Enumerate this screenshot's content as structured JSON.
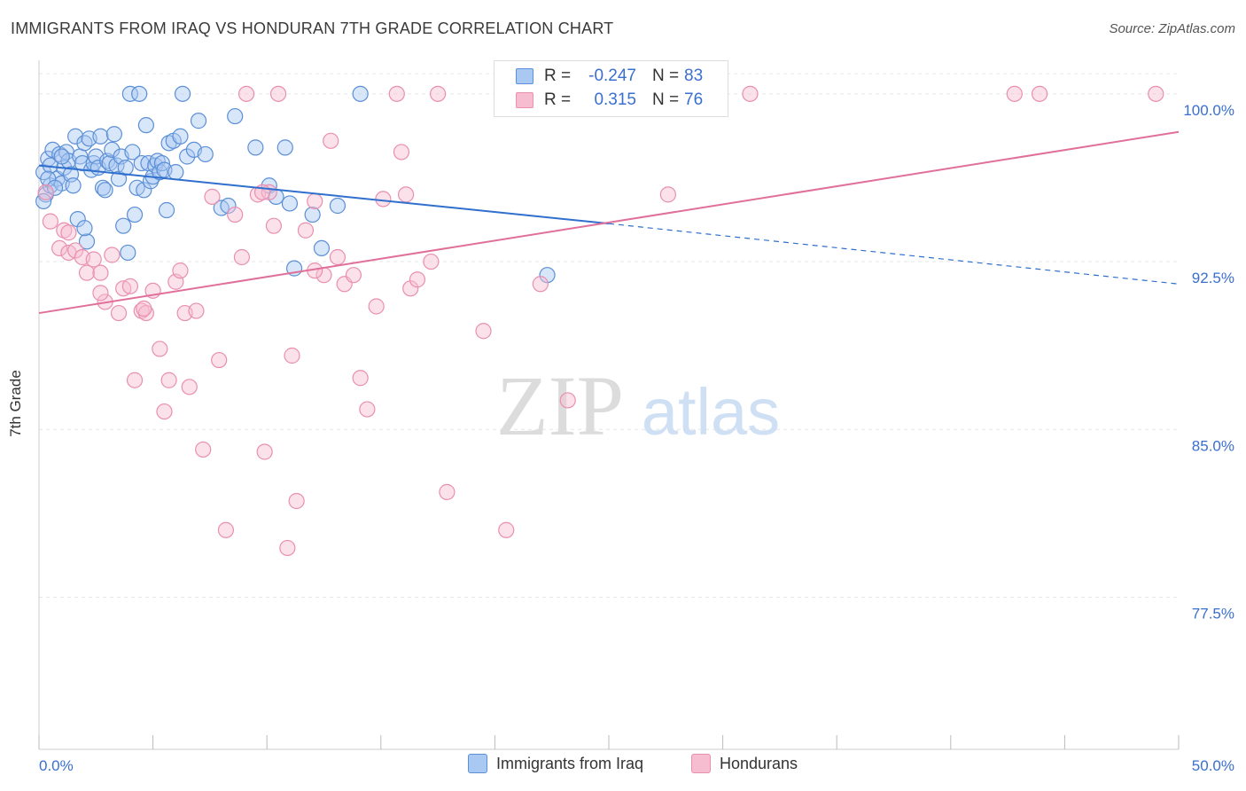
{
  "title": "IMMIGRANTS FROM IRAQ VS HONDURAN 7TH GRADE CORRELATION CHART",
  "source": "Source: ZipAtlas.com",
  "watermark": {
    "zip": "ZIP",
    "atlas": "atlas"
  },
  "colors": {
    "iraq_fill": "#a9c8f2",
    "iraq_stroke": "#5b8fd6",
    "iraq_line": "#2f6fcd",
    "hond_fill": "#f6bcd0",
    "hond_stroke": "#e98fb0",
    "hond_line": "#e0709a",
    "axis_text": "#3a6fd0",
    "grid": "#e6e6e6"
  },
  "legend": {
    "r_label": "R =",
    "n_label": "N =",
    "iraq": {
      "r": "-0.247",
      "n": "83"
    },
    "hond": {
      "r": "0.315",
      "n": "76"
    }
  },
  "chart_data": {
    "type": "scatter",
    "title": "IMMIGRANTS FROM IRAQ VS HONDURAN 7TH GRADE CORRELATION CHART",
    "xlabel": "",
    "ylabel": "7th Grade",
    "xlim": [
      0,
      50
    ],
    "ylim": [
      70.7,
      101.5
    ],
    "x_tick_labels": [
      "0.0%",
      "50.0%"
    ],
    "y_ticks": [
      77.5,
      85.0,
      92.5,
      100.0
    ],
    "y_tick_labels": [
      "77.5%",
      "85.0%",
      "92.5%",
      "100.0%"
    ],
    "grid": true,
    "legend_position": "bottom",
    "series": [
      {
        "name": "Immigrants from Iraq",
        "r": -0.247,
        "n": 83,
        "trend": {
          "x": [
            0,
            25
          ],
          "y": [
            96.8,
            94.2
          ],
          "dashed_to": [
            50,
            91.5
          ]
        },
        "points": [
          [
            0.2,
            96.5
          ],
          [
            0.3,
            95.5
          ],
          [
            0.4,
            97.1
          ],
          [
            0.5,
            96.8
          ],
          [
            0.5,
            95.9
          ],
          [
            0.6,
            97.5
          ],
          [
            0.8,
            96.2
          ],
          [
            0.9,
            97.3
          ],
          [
            1.0,
            96.0
          ],
          [
            1.1,
            96.7
          ],
          [
            1.2,
            97.4
          ],
          [
            1.3,
            97.0
          ],
          [
            1.4,
            96.4
          ],
          [
            1.5,
            95.9
          ],
          [
            1.6,
            98.1
          ],
          [
            1.7,
            94.4
          ],
          [
            1.8,
            97.2
          ],
          [
            1.9,
            96.9
          ],
          [
            2.0,
            97.8
          ],
          [
            2.1,
            93.4
          ],
          [
            2.2,
            98.0
          ],
          [
            2.3,
            96.6
          ],
          [
            2.4,
            96.9
          ],
          [
            2.5,
            97.2
          ],
          [
            2.6,
            96.7
          ],
          [
            2.7,
            98.1
          ],
          [
            2.8,
            95.8
          ],
          [
            2.9,
            95.7
          ],
          [
            3.0,
            97.0
          ],
          [
            3.1,
            96.9
          ],
          [
            3.2,
            97.5
          ],
          [
            3.3,
            98.2
          ],
          [
            3.4,
            96.8
          ],
          [
            3.5,
            96.2
          ],
          [
            3.6,
            97.2
          ],
          [
            3.7,
            94.1
          ],
          [
            3.8,
            96.7
          ],
          [
            3.9,
            92.9
          ],
          [
            4.0,
            100.0
          ],
          [
            4.1,
            97.4
          ],
          [
            4.2,
            94.6
          ],
          [
            4.3,
            95.8
          ],
          [
            4.4,
            100.0
          ],
          [
            4.5,
            96.9
          ],
          [
            4.6,
            95.7
          ],
          [
            4.7,
            98.6
          ],
          [
            4.8,
            96.9
          ],
          [
            4.9,
            96.1
          ],
          [
            5.0,
            96.3
          ],
          [
            5.1,
            96.8
          ],
          [
            5.2,
            97.0
          ],
          [
            5.3,
            96.5
          ],
          [
            5.4,
            96.9
          ],
          [
            5.5,
            96.6
          ],
          [
            5.6,
            94.8
          ],
          [
            5.7,
            97.8
          ],
          [
            5.9,
            97.9
          ],
          [
            6.0,
            96.5
          ],
          [
            6.2,
            98.1
          ],
          [
            6.3,
            100.0
          ],
          [
            6.5,
            97.2
          ],
          [
            6.8,
            97.5
          ],
          [
            7.0,
            98.8
          ],
          [
            7.3,
            97.3
          ],
          [
            8.0,
            94.9
          ],
          [
            8.3,
            95.0
          ],
          [
            8.6,
            99.0
          ],
          [
            2.0,
            94.0
          ],
          [
            0.2,
            95.2
          ],
          [
            0.4,
            96.2
          ],
          [
            0.7,
            95.8
          ],
          [
            1.0,
            97.2
          ],
          [
            9.5,
            97.6
          ],
          [
            10.1,
            95.9
          ],
          [
            10.4,
            95.4
          ],
          [
            10.8,
            97.6
          ],
          [
            11.0,
            95.1
          ],
          [
            11.2,
            92.2
          ],
          [
            12.0,
            94.6
          ],
          [
            12.4,
            93.1
          ],
          [
            13.1,
            95.0
          ],
          [
            14.1,
            100.0
          ],
          [
            22.3,
            91.9
          ]
        ]
      },
      {
        "name": "Hondurans",
        "r": 0.315,
        "n": 76,
        "trend": {
          "x": [
            0,
            50
          ],
          "y": [
            90.2,
            98.3
          ]
        },
        "points": [
          [
            0.3,
            95.6
          ],
          [
            0.5,
            94.3
          ],
          [
            0.9,
            93.1
          ],
          [
            1.1,
            93.9
          ],
          [
            1.3,
            92.9
          ],
          [
            1.6,
            93.0
          ],
          [
            1.9,
            92.7
          ],
          [
            2.1,
            92.0
          ],
          [
            2.4,
            92.6
          ],
          [
            2.7,
            92.0
          ],
          [
            2.9,
            90.7
          ],
          [
            3.2,
            92.8
          ],
          [
            3.5,
            90.2
          ],
          [
            3.7,
            91.3
          ],
          [
            4.0,
            91.4
          ],
          [
            4.2,
            87.2
          ],
          [
            4.5,
            90.3
          ],
          [
            4.7,
            90.2
          ],
          [
            5.0,
            91.2
          ],
          [
            5.3,
            88.6
          ],
          [
            5.5,
            85.8
          ],
          [
            5.7,
            87.2
          ],
          [
            6.0,
            91.6
          ],
          [
            6.2,
            92.1
          ],
          [
            6.4,
            90.2
          ],
          [
            6.6,
            86.9
          ],
          [
            6.9,
            90.3
          ],
          [
            7.2,
            84.1
          ],
          [
            7.6,
            95.4
          ],
          [
            7.9,
            88.1
          ],
          [
            8.2,
            80.5
          ],
          [
            8.6,
            94.6
          ],
          [
            8.9,
            92.7
          ],
          [
            9.1,
            100.0
          ],
          [
            9.6,
            95.5
          ],
          [
            9.9,
            84.0
          ],
          [
            10.1,
            95.6
          ],
          [
            10.3,
            94.1
          ],
          [
            10.5,
            100.0
          ],
          [
            10.9,
            79.7
          ],
          [
            11.1,
            88.3
          ],
          [
            11.3,
            81.8
          ],
          [
            11.7,
            93.9
          ],
          [
            12.1,
            95.2
          ],
          [
            12.5,
            91.9
          ],
          [
            12.8,
            97.9
          ],
          [
            13.1,
            92.7
          ],
          [
            13.4,
            91.5
          ],
          [
            13.8,
            91.9
          ],
          [
            14.1,
            87.3
          ],
          [
            14.4,
            85.9
          ],
          [
            14.8,
            90.5
          ],
          [
            15.1,
            95.3
          ],
          [
            15.7,
            100.0
          ],
          [
            15.9,
            97.4
          ],
          [
            16.1,
            95.5
          ],
          [
            16.3,
            91.3
          ],
          [
            16.6,
            91.7
          ],
          [
            17.2,
            92.5
          ],
          [
            17.5,
            100.0
          ],
          [
            17.9,
            82.2
          ],
          [
            19.5,
            89.4
          ],
          [
            20.5,
            80.5
          ],
          [
            22.0,
            91.5
          ],
          [
            23.2,
            86.3
          ],
          [
            27.6,
            95.5
          ],
          [
            31.2,
            100.0
          ],
          [
            42.8,
            100.0
          ],
          [
            43.9,
            100.0
          ],
          [
            49.0,
            100.0
          ],
          [
            28.5,
            100.0
          ],
          [
            4.6,
            90.4
          ],
          [
            9.8,
            95.6
          ],
          [
            12.1,
            92.1
          ],
          [
            2.7,
            91.1
          ],
          [
            1.3,
            93.8
          ]
        ]
      }
    ]
  },
  "bottom_legend": {
    "iraq": "Immigrants from Iraq",
    "hond": "Hondurans"
  }
}
